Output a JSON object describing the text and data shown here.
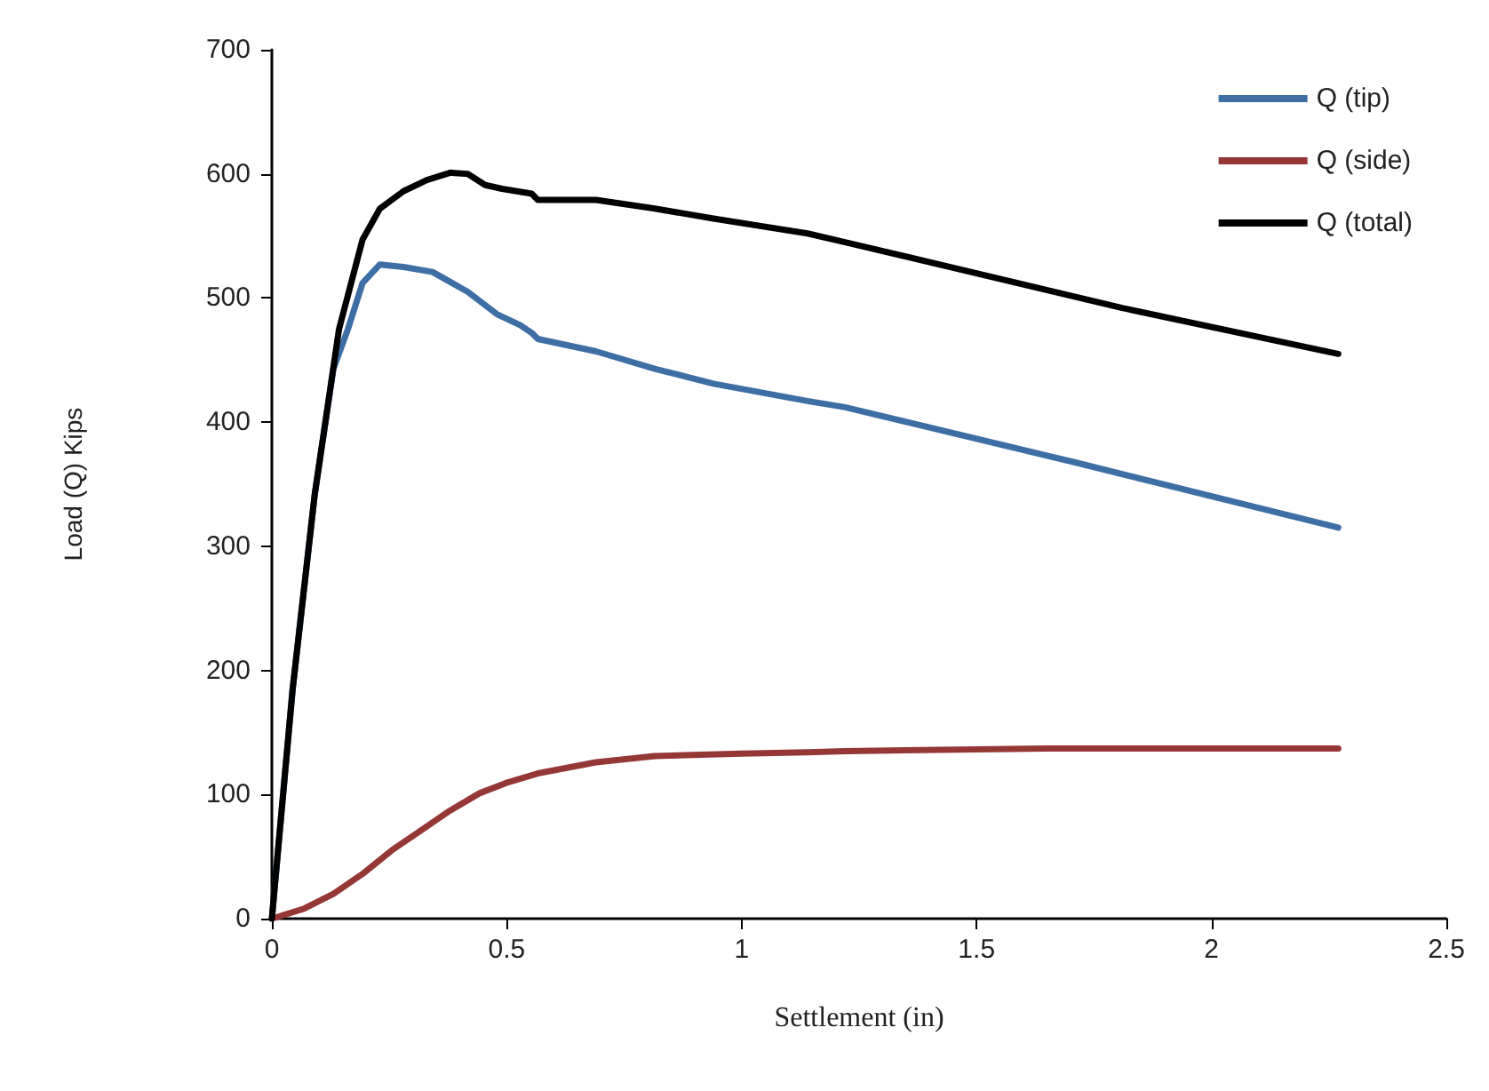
{
  "chart_data": {
    "type": "line",
    "xlabel": "Settlement (in)",
    "ylabel": "Load (Q) Kips",
    "xlim": [
      0,
      2.5
    ],
    "xticks": [
      0,
      0.5,
      1,
      1.5,
      2,
      2.5
    ],
    "ylim": [
      0,
      700
    ],
    "yticks": [
      0,
      100,
      200,
      300,
      400,
      500,
      600,
      700
    ],
    "grid": false,
    "legend": "top right",
    "marker": "none",
    "line_style": "solid",
    "series": [
      {
        "name": "Q (tip)",
        "color": "#3e6ea4",
        "x": [
          0,
          0.044,
          0.091,
          0.131,
          0.162,
          0.193,
          0.23,
          0.28,
          0.342,
          0.417,
          0.479,
          0.529,
          0.553,
          0.566,
          0.69,
          0.815,
          0.94,
          1.14,
          1.22,
          1.716,
          2.27
        ],
        "values": [
          0,
          184,
          341,
          443,
          475,
          512,
          527,
          525,
          521,
          505,
          487,
          478,
          472,
          467,
          457,
          443,
          431,
          417,
          412,
          367,
          315
        ]
      },
      {
        "name": "Q (side)",
        "color": "#953735",
        "x": [
          0,
          0.068,
          0.131,
          0.193,
          0.255,
          0.317,
          0.379,
          0.442,
          0.504,
          0.566,
          0.69,
          0.815,
          1.0,
          1.14,
          1.22,
          1.65,
          2.27
        ],
        "values": [
          0,
          8,
          20,
          36,
          55,
          71,
          87,
          101,
          110,
          117,
          126,
          131,
          133,
          134,
          135,
          137,
          137
        ]
      },
      {
        "name": "Q (total)",
        "color": "#000000",
        "x": [
          0,
          0.044,
          0.091,
          0.143,
          0.193,
          0.23,
          0.28,
          0.33,
          0.38,
          0.417,
          0.454,
          0.49,
          0.553,
          0.566,
          0.69,
          0.815,
          0.94,
          1.14,
          1.22,
          1.81,
          2.27
        ],
        "values": [
          0,
          184,
          341,
          475,
          547,
          572,
          586,
          595,
          601,
          600,
          591,
          588,
          584,
          579,
          579,
          572,
          564,
          552,
          545,
          492,
          455
        ]
      }
    ]
  }
}
